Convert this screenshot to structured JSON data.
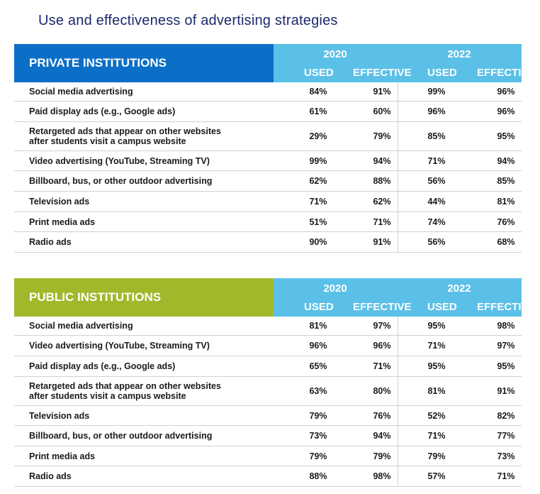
{
  "title": "Use and effectiveness of advertising strategies",
  "colors": {
    "private": "#0b6fc7",
    "public": "#a2b82b",
    "header_right": "#5bc0e8",
    "title": "#1b2a6b"
  },
  "years": [
    "2020",
    "2022"
  ],
  "sub": {
    "used": "USED",
    "effective": "EFFECTIVE"
  },
  "private": {
    "heading": "PRIVATE INSTITUTIONS",
    "rows": [
      {
        "label": "Social media advertising",
        "u20": "84%",
        "e20": "91%",
        "u22": "99%",
        "e22": "96%"
      },
      {
        "label": "Paid display ads (e.g., Google ads)",
        "u20": "61%",
        "e20": "60%",
        "u22": "96%",
        "e22": "96%"
      },
      {
        "label": "Retargeted ads that appear on other websites after students visit a campus website",
        "u20": "29%",
        "e20": "79%",
        "u22": "85%",
        "e22": "95%"
      },
      {
        "label": "Video advertising (YouTube, Streaming TV)",
        "u20": "99%",
        "e20": "94%",
        "u22": "71%",
        "e22": "94%"
      },
      {
        "label": "Billboard, bus, or other outdoor advertising",
        "u20": "62%",
        "e20": "88%",
        "u22": "56%",
        "e22": "85%"
      },
      {
        "label": "Television ads",
        "u20": "71%",
        "e20": "62%",
        "u22": "44%",
        "e22": "81%"
      },
      {
        "label": "Print media ads",
        "u20": "51%",
        "e20": "71%",
        "u22": "74%",
        "e22": "76%"
      },
      {
        "label": "Radio ads",
        "u20": "90%",
        "e20": "91%",
        "u22": "56%",
        "e22": "68%"
      }
    ]
  },
  "public": {
    "heading": "PUBLIC INSTITUTIONS",
    "rows": [
      {
        "label": "Social media advertising",
        "u20": "81%",
        "e20": "97%",
        "u22": "95%",
        "e22": "98%"
      },
      {
        "label": "Video advertising (YouTube, Streaming TV)",
        "u20": "96%",
        "e20": "96%",
        "u22": "71%",
        "e22": "97%"
      },
      {
        "label": "Paid display ads (e.g., Google ads)",
        "u20": "65%",
        "e20": "71%",
        "u22": "95%",
        "e22": "95%"
      },
      {
        "label": "Retargeted ads that appear on other websites after students visit a campus website",
        "u20": "63%",
        "e20": "80%",
        "u22": "81%",
        "e22": "91%"
      },
      {
        "label": "Television ads",
        "u20": "79%",
        "e20": "76%",
        "u22": "52%",
        "e22": "82%"
      },
      {
        "label": "Billboard, bus, or other outdoor advertising",
        "u20": "73%",
        "e20": "94%",
        "u22": "71%",
        "e22": "77%"
      },
      {
        "label": "Print media ads",
        "u20": "79%",
        "e20": "79%",
        "u22": "79%",
        "e22": "73%"
      },
      {
        "label": "Radio ads",
        "u20": "88%",
        "e20": "98%",
        "u22": "57%",
        "e22": "71%"
      }
    ]
  }
}
